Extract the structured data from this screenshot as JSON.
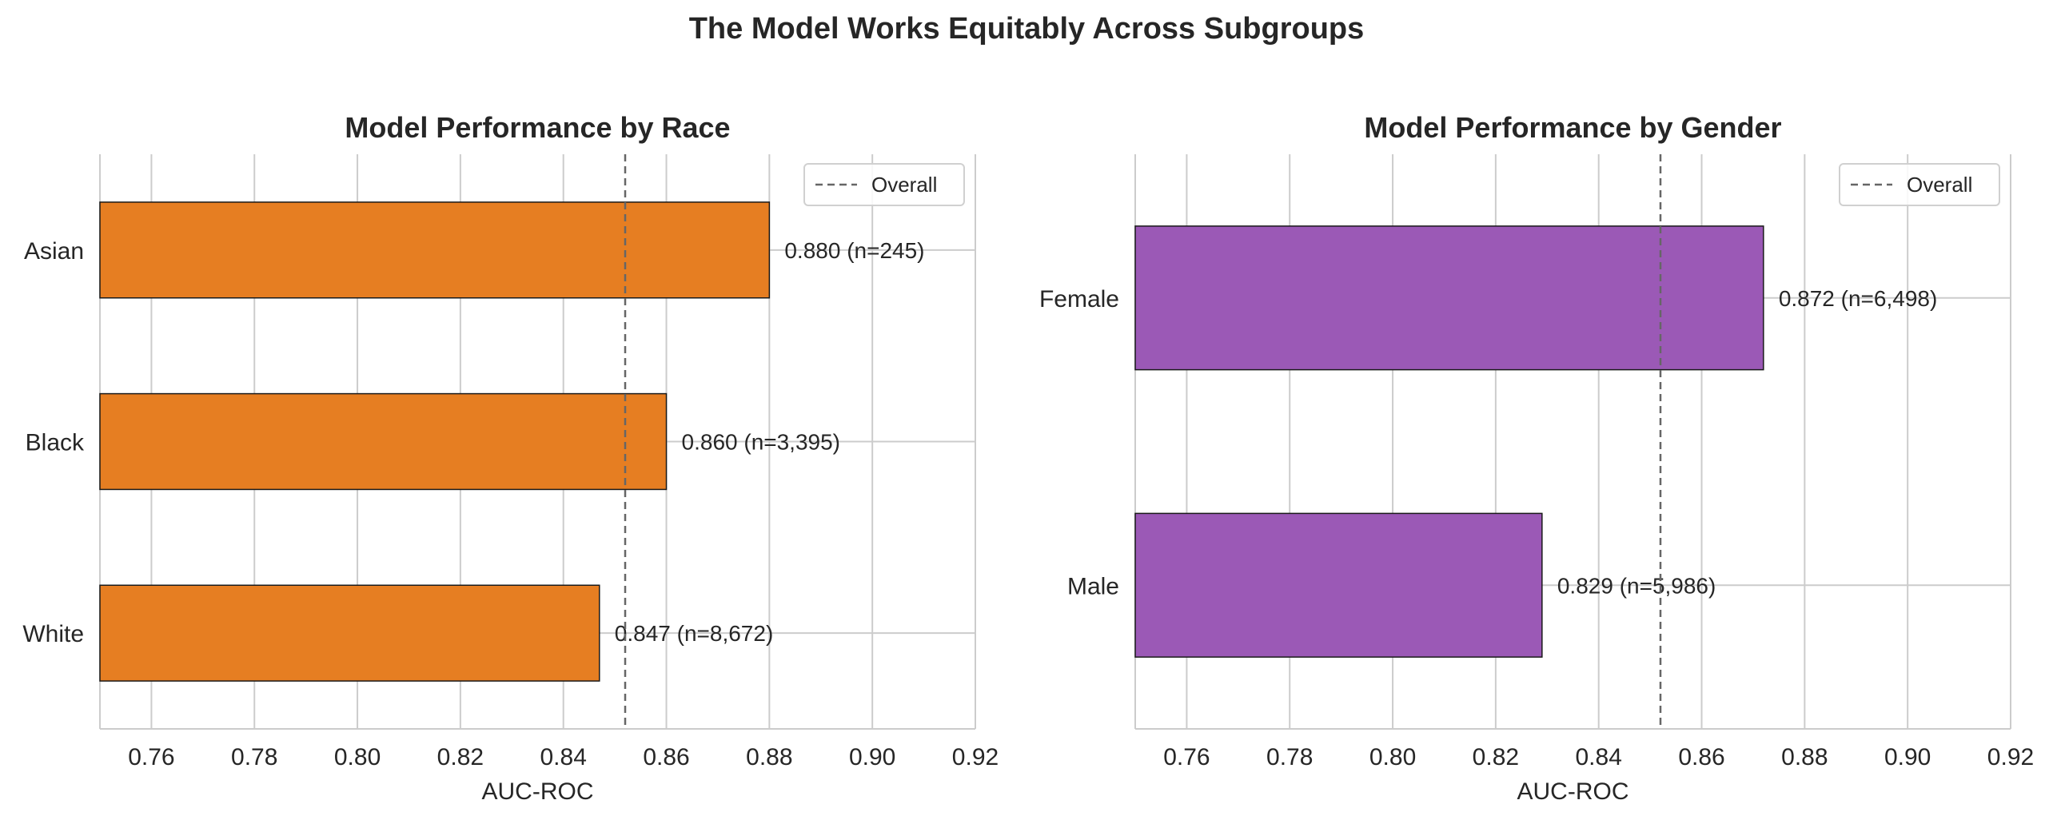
{
  "title": "The Model Works Equitably Across Subgroups",
  "chart_data": [
    {
      "type": "bar",
      "orientation": "horizontal",
      "title": "Model Performance by Race",
      "xlabel": "AUC-ROC",
      "ylabel": "",
      "categories": [
        "Asian",
        "Black",
        "White"
      ],
      "values": [
        0.88,
        0.86,
        0.847
      ],
      "bar_labels": [
        "0.880 (n=245)",
        "0.860 (n=3,395)",
        "0.847 (n=8,672)"
      ],
      "xlim": [
        0.75,
        0.92
      ],
      "xticks": [
        "0.76",
        "0.78",
        "0.80",
        "0.82",
        "0.84",
        "0.86",
        "0.88",
        "0.90",
        "0.92"
      ],
      "reference_line": {
        "label": "Overall",
        "value": 0.852,
        "style": "dashed",
        "color": "#666666"
      },
      "legend": {
        "position": "top-right",
        "entries": [
          "Overall"
        ]
      },
      "bar_color": "#e67e22",
      "grid": true
    },
    {
      "type": "bar",
      "orientation": "horizontal",
      "title": "Model Performance by Gender",
      "xlabel": "AUC-ROC",
      "ylabel": "",
      "categories": [
        "Female",
        "Male"
      ],
      "values": [
        0.872,
        0.829
      ],
      "bar_labels": [
        "0.872 (n=6,498)",
        "0.829 (n=5,986)"
      ],
      "xlim": [
        0.75,
        0.92
      ],
      "xticks": [
        "0.76",
        "0.78",
        "0.80",
        "0.82",
        "0.84",
        "0.86",
        "0.88",
        "0.90",
        "0.92"
      ],
      "reference_line": {
        "label": "Overall",
        "value": 0.852,
        "style": "dashed",
        "color": "#666666"
      },
      "legend": {
        "position": "top-right",
        "entries": [
          "Overall"
        ]
      },
      "bar_color": "#9b59b6",
      "grid": true
    }
  ]
}
